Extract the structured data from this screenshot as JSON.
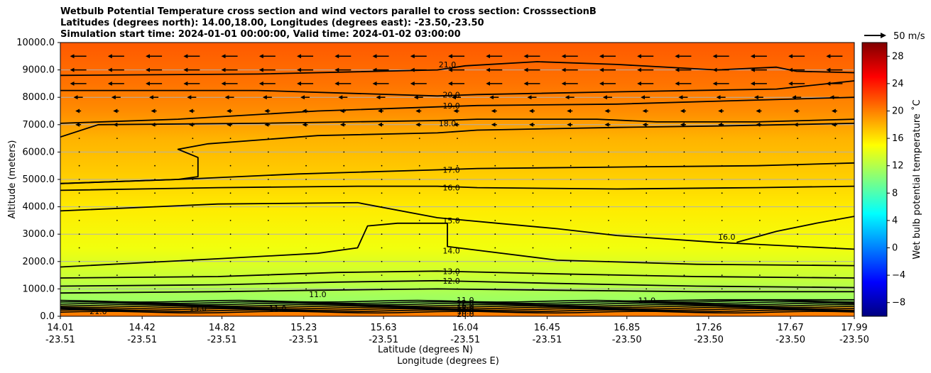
{
  "title_lines": [
    "Wetbulb Potential Temperature cross section and wind vectors parallel to cross section: CrosssectionB",
    "Latitudes (degrees north): 14.00,18.00, Longitudes (degrees east): -23.50,-23.50",
    "Simulation start time: 2024-01-01 00:00:00, Valid time: 2024-01-02 03:00:00"
  ],
  "quiver_key_label": "50 m/s",
  "chart_data": {
    "type": "heatmap",
    "ylabel": "Altitude (meters)",
    "xlabel_lines": [
      "Latitude (degrees N)",
      "Longitude (degrees E)"
    ],
    "ylim": [
      0,
      10000
    ],
    "y_ticks": [
      0,
      1000,
      2000,
      3000,
      4000,
      5000,
      6000,
      7000,
      8000,
      9000,
      10000
    ],
    "y_tick_labels": [
      "0.0",
      "1000.0",
      "2000.0",
      "3000.0",
      "4000.0",
      "5000.0",
      "6000.0",
      "7000.0",
      "8000.0",
      "9000.0",
      "10000.0"
    ],
    "xlim": [
      14.01,
      17.99
    ],
    "x_ticks": [
      {
        "lat": "14.01",
        "lon": "-23.51",
        "x": 14.01
      },
      {
        "lat": "14.42",
        "lon": "-23.51",
        "x": 14.42
      },
      {
        "lat": "14.82",
        "lon": "-23.51",
        "x": 14.82
      },
      {
        "lat": "15.23",
        "lon": "-23.51",
        "x": 15.23
      },
      {
        "lat": "15.63",
        "lon": "-23.51",
        "x": 15.63
      },
      {
        "lat": "16.04",
        "lon": "-23.51",
        "x": 16.04
      },
      {
        "lat": "16.45",
        "lon": "-23.51",
        "x": 16.45
      },
      {
        "lat": "16.85",
        "lon": "-23.50",
        "x": 16.85
      },
      {
        "lat": "17.26",
        "lon": "-23.50",
        "x": 17.26
      },
      {
        "lat": "17.67",
        "lon": "-23.50",
        "x": 17.67
      },
      {
        "lat": "17.99",
        "lon": "-23.50",
        "x": 17.99
      }
    ],
    "grid": "horizontal",
    "colorbar": {
      "label": "Wet bulb potential temperature $^\\circ$C",
      "label_display": "Wet bulb potential temperature ˚C",
      "range": [
        -10,
        30
      ],
      "ticks": [
        -8,
        -4,
        0,
        4,
        8,
        12,
        16,
        20,
        24,
        28
      ],
      "tick_labels": [
        "−8",
        "−4",
        "0",
        "4",
        "8",
        "12",
        "16",
        "20",
        "24",
        "28"
      ],
      "colormap": "jet",
      "colors": [
        "#00007f",
        "#0000ff",
        "#007fff",
        "#00ffff",
        "#7fff7f",
        "#ffff00",
        "#ff7f00",
        "#ff0000",
        "#7f0000"
      ]
    },
    "field_profile": [
      {
        "z": 0,
        "t": 20.5
      },
      {
        "z": 300,
        "t": 19
      },
      {
        "z": 450,
        "t": 11
      },
      {
        "z": 800,
        "t": 11.5
      },
      {
        "z": 1500,
        "t": 13
      },
      {
        "z": 2500,
        "t": 14.5
      },
      {
        "z": 4000,
        "t": 15.8
      },
      {
        "z": 5200,
        "t": 17
      },
      {
        "z": 6500,
        "t": 18
      },
      {
        "z": 7500,
        "t": 19.5
      },
      {
        "z": 8500,
        "t": 20.5
      },
      {
        "z": 10000,
        "t": 21.5
      }
    ],
    "contours": [
      {
        "level": "21.0",
        "points": [
          [
            14.01,
            8800
          ],
          [
            15.0,
            8850
          ],
          [
            15.9,
            9000
          ],
          [
            16.04,
            9150
          ],
          [
            16.4,
            9300
          ],
          [
            16.8,
            9200
          ],
          [
            17.3,
            9000
          ],
          [
            17.6,
            9100
          ],
          [
            17.7,
            8950
          ],
          [
            17.99,
            8900
          ]
        ],
        "label_at": [
          15.95,
          9200
        ]
      },
      {
        "level": "20.0",
        "points": [
          [
            14.01,
            8250
          ],
          [
            15.0,
            8250
          ],
          [
            15.9,
            8050
          ],
          [
            16.1,
            8100
          ],
          [
            16.8,
            8200
          ],
          [
            17.6,
            8300
          ],
          [
            17.99,
            8600
          ]
        ],
        "label_at": [
          15.97,
          8100
        ]
      },
      {
        "level": "19.0",
        "points": [
          [
            14.01,
            7050
          ],
          [
            14.6,
            7200
          ],
          [
            15.3,
            7500
          ],
          [
            15.9,
            7650
          ],
          [
            16.1,
            7700
          ],
          [
            16.8,
            7750
          ],
          [
            17.5,
            7900
          ],
          [
            17.99,
            8000
          ]
        ],
        "label_at": [
          15.97,
          7700
        ]
      },
      {
        "level": "18.0",
        "points": [
          [
            14.01,
            6550
          ],
          [
            14.2,
            7000
          ],
          [
            15.0,
            7050
          ],
          [
            15.9,
            7150
          ],
          [
            16.1,
            7200
          ],
          [
            16.7,
            7200
          ],
          [
            17.0,
            7100
          ],
          [
            17.5,
            7100
          ],
          [
            17.99,
            7200
          ]
        ],
        "label_at": [
          15.95,
          7050
        ]
      },
      {
        "level": "17.0",
        "points": [
          [
            14.01,
            4850
          ],
          [
            14.6,
            5000
          ],
          [
            14.7,
            5100
          ],
          [
            14.7,
            5800
          ],
          [
            14.6,
            6100
          ],
          [
            14.75,
            6300
          ],
          [
            15.3,
            6600
          ],
          [
            15.9,
            6700
          ],
          [
            16.1,
            6800
          ],
          [
            16.8,
            6900
          ],
          [
            17.3,
            6950
          ],
          [
            17.99,
            7050
          ]
        ],
        "label_at": null
      },
      {
        "level": "17.0",
        "points": [
          [
            14.01,
            4850
          ],
          [
            14.6,
            5000
          ],
          [
            15.2,
            5200
          ],
          [
            15.9,
            5350
          ],
          [
            16.1,
            5400
          ],
          [
            16.8,
            5450
          ],
          [
            17.5,
            5500
          ],
          [
            17.99,
            5600
          ]
        ],
        "label_at": [
          15.97,
          5350
        ]
      },
      {
        "level": "16.0",
        "points": [
          [
            14.01,
            4600
          ],
          [
            14.8,
            4700
          ],
          [
            15.5,
            4750
          ],
          [
            15.9,
            4750
          ],
          [
            16.1,
            4700
          ],
          [
            16.8,
            4650
          ],
          [
            17.5,
            4700
          ],
          [
            17.99,
            4750
          ]
        ],
        "label_at": [
          15.97,
          4700
        ]
      },
      {
        "level": "15.0",
        "points": [
          [
            14.01,
            3850
          ],
          [
            14.8,
            4100
          ],
          [
            15.5,
            4150
          ],
          [
            15.9,
            3600
          ],
          [
            16.2,
            3400
          ],
          [
            16.5,
            3200
          ],
          [
            16.8,
            2950
          ],
          [
            17.3,
            2700
          ],
          [
            17.99,
            2450
          ]
        ],
        "label_at": [
          15.97,
          3500
        ]
      },
      {
        "level": "16.0",
        "points": [
          [
            17.4,
            2700
          ],
          [
            17.6,
            3100
          ],
          [
            17.8,
            3400
          ],
          [
            17.99,
            3650
          ]
        ],
        "label_at": [
          17.35,
          2900
        ]
      },
      {
        "level": "14.0",
        "points": [
          [
            14.01,
            1800
          ],
          [
            14.8,
            2100
          ],
          [
            15.3,
            2300
          ],
          [
            15.5,
            2500
          ],
          [
            15.55,
            3300
          ],
          [
            15.7,
            3400
          ],
          [
            15.95,
            3400
          ],
          [
            15.95,
            2550
          ],
          [
            16.5,
            2050
          ],
          [
            17.2,
            1900
          ],
          [
            17.99,
            1850
          ]
        ],
        "label_at": [
          15.97,
          2400
        ]
      },
      {
        "level": "13.0",
        "points": [
          [
            14.01,
            1400
          ],
          [
            14.8,
            1450
          ],
          [
            15.4,
            1600
          ],
          [
            15.9,
            1650
          ],
          [
            16.5,
            1550
          ],
          [
            17.2,
            1450
          ],
          [
            17.99,
            1400
          ]
        ],
        "label_at": [
          15.97,
          1650
        ]
      },
      {
        "level": "12.0",
        "points": [
          [
            14.01,
            1100
          ],
          [
            14.8,
            1150
          ],
          [
            15.4,
            1250
          ],
          [
            15.9,
            1300
          ],
          [
            16.5,
            1200
          ],
          [
            17.2,
            1100
          ],
          [
            17.99,
            1050
          ]
        ],
        "label_at": [
          15.97,
          1300
        ]
      },
      {
        "level": "11.0",
        "points": [
          [
            14.01,
            850
          ],
          [
            14.8,
            900
          ],
          [
            15.3,
            950
          ],
          [
            15.9,
            1000
          ],
          [
            16.5,
            950
          ],
          [
            17.2,
            900
          ],
          [
            17.99,
            900
          ]
        ],
        "label_at": [
          15.3,
          800
        ]
      },
      {
        "level": "11.0",
        "points": [
          [
            16.8,
            550
          ],
          [
            17.3,
            600
          ],
          [
            17.99,
            600
          ]
        ],
        "label_at": [
          16.95,
          580
        ]
      }
    ],
    "dense_band": {
      "z_min": 150,
      "z_max": 550,
      "labels": [
        "11.0",
        "12.0",
        "16.0",
        "15.0",
        "18.0",
        "20.0"
      ]
    },
    "surface_labels": [
      "21.0",
      "15.0",
      "11.0"
    ],
    "wind_vectors": {
      "direction": "westward",
      "max_speed_label": "50 m/s",
      "rows": [
        {
          "z": 9500,
          "speed": "strong"
        },
        {
          "z": 9000,
          "speed": "strong"
        },
        {
          "z": 8500,
          "speed": "strong"
        },
        {
          "z": 8000,
          "speed": "medium"
        },
        {
          "z": 7500,
          "speed": "weak"
        },
        {
          "z": 7000,
          "speed": "weak"
        },
        {
          "z": 6500,
          "speed": "calm"
        },
        {
          "z": 6000,
          "speed": "calm"
        },
        {
          "z": 5500,
          "speed": "calm"
        },
        {
          "z": 5000,
          "speed": "calm"
        },
        {
          "z": 4500,
          "speed": "calm"
        },
        {
          "z": 4000,
          "speed": "calm"
        },
        {
          "z": 3500,
          "speed": "calm"
        },
        {
          "z": 3000,
          "speed": "calm"
        },
        {
          "z": 2500,
          "speed": "calm"
        },
        {
          "z": 2000,
          "speed": "calm"
        },
        {
          "z": 1500,
          "speed": "calm"
        },
        {
          "z": 1000,
          "speed": "calm"
        }
      ]
    }
  }
}
